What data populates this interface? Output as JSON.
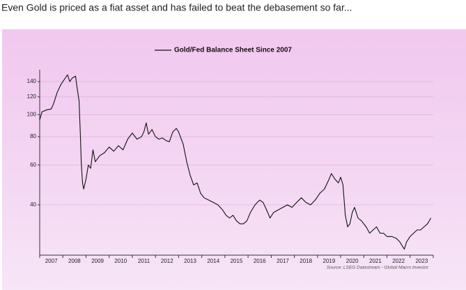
{
  "chart_data": {
    "type": "line",
    "title": "Even Gold is priced as a fiat asset and has failed to beat the debasement so far...",
    "source": "Source: LSEG Datastream - Global Macro Investor",
    "log_y": true,
    "grid": true,
    "legend": "top",
    "x": [
      2007.0,
      2007.1,
      2007.3,
      2007.5,
      2007.6,
      2007.75,
      2007.9,
      2008.0,
      2008.1,
      2008.2,
      2008.3,
      2008.4,
      2008.55,
      2008.6,
      2008.7,
      2008.75,
      2008.8,
      2008.85,
      2008.9,
      2009.0,
      2009.1,
      2009.2,
      2009.3,
      2009.4,
      2009.5,
      2009.6,
      2009.8,
      2010.0,
      2010.2,
      2010.4,
      2010.6,
      2010.8,
      2011.0,
      2011.2,
      2011.4,
      2011.5,
      2011.6,
      2011.7,
      2011.85,
      2012.0,
      2012.15,
      2012.3,
      2012.45,
      2012.6,
      2012.75,
      2012.9,
      2013.0,
      2013.2,
      2013.35,
      2013.5,
      2013.65,
      2013.8,
      2013.95,
      2014.1,
      2014.3,
      2014.5,
      2014.7,
      2014.9,
      2015.05,
      2015.2,
      2015.35,
      2015.5,
      2015.65,
      2015.8,
      2015.95,
      2016.1,
      2016.3,
      2016.5,
      2016.65,
      2016.8,
      2016.95,
      2017.1,
      2017.3,
      2017.5,
      2017.7,
      2017.9,
      2018.1,
      2018.3,
      2018.5,
      2018.7,
      2018.9,
      2019.1,
      2019.3,
      2019.5,
      2019.6,
      2019.75,
      2019.9,
      2020.0,
      2020.1,
      2020.2,
      2020.3,
      2020.4,
      2020.5,
      2020.6,
      2020.75,
      2020.9,
      2021.1,
      2021.25,
      2021.4,
      2021.55,
      2021.7,
      2021.85,
      2022.0,
      2022.2,
      2022.4,
      2022.55,
      2022.75,
      2022.85,
      2023.0,
      2023.15,
      2023.3,
      2023.45,
      2023.6,
      2023.75,
      2023.9
    ],
    "series": [
      {
        "name": "Gold/Fed Balance Sheet Since 2007",
        "color": "#111111",
        "values": [
          95,
          103,
          105,
          106,
          112,
          125,
          135,
          140,
          145,
          150,
          140,
          145,
          148,
          135,
          115,
          85,
          60,
          50,
          47,
          52,
          60,
          58,
          70,
          62,
          64,
          66,
          68,
          72,
          69,
          73,
          70,
          78,
          83,
          78,
          80,
          84,
          92,
          82,
          86,
          80,
          78,
          79,
          77,
          76,
          84,
          87,
          84,
          74,
          62,
          54,
          49,
          50,
          45,
          43,
          42,
          41,
          40,
          38,
          36,
          35,
          36,
          34,
          33,
          33,
          34,
          37,
          40,
          42,
          41,
          38,
          35,
          37,
          38,
          39,
          40,
          39,
          41,
          43,
          41,
          40,
          42,
          45,
          47,
          52,
          55,
          52,
          50,
          53,
          49,
          36,
          32,
          33,
          37,
          39,
          35,
          34,
          32,
          30,
          31,
          32,
          30,
          30,
          29,
          29,
          28.5,
          27.5,
          25.5,
          27.5,
          29,
          30,
          31,
          31,
          32,
          33,
          35
        ]
      }
    ],
    "xlim": [
      2007,
      2024
    ],
    "xticks": [
      2007,
      2008,
      2009,
      2010,
      2011,
      2012,
      2013,
      2014,
      2015,
      2016,
      2017,
      2018,
      2019,
      2020,
      2021,
      2022,
      2023,
      2024
    ],
    "x_labels": [
      "2007",
      "2008",
      "2009",
      "2010",
      "2011",
      "2012",
      "2013",
      "2014",
      "2015",
      "2016",
      "2017",
      "2018",
      "2019",
      "2020",
      "2021",
      "2022",
      "2023"
    ],
    "ylim": [
      24,
      158
    ],
    "yticks": [
      40,
      60,
      80,
      100,
      120,
      140
    ]
  }
}
